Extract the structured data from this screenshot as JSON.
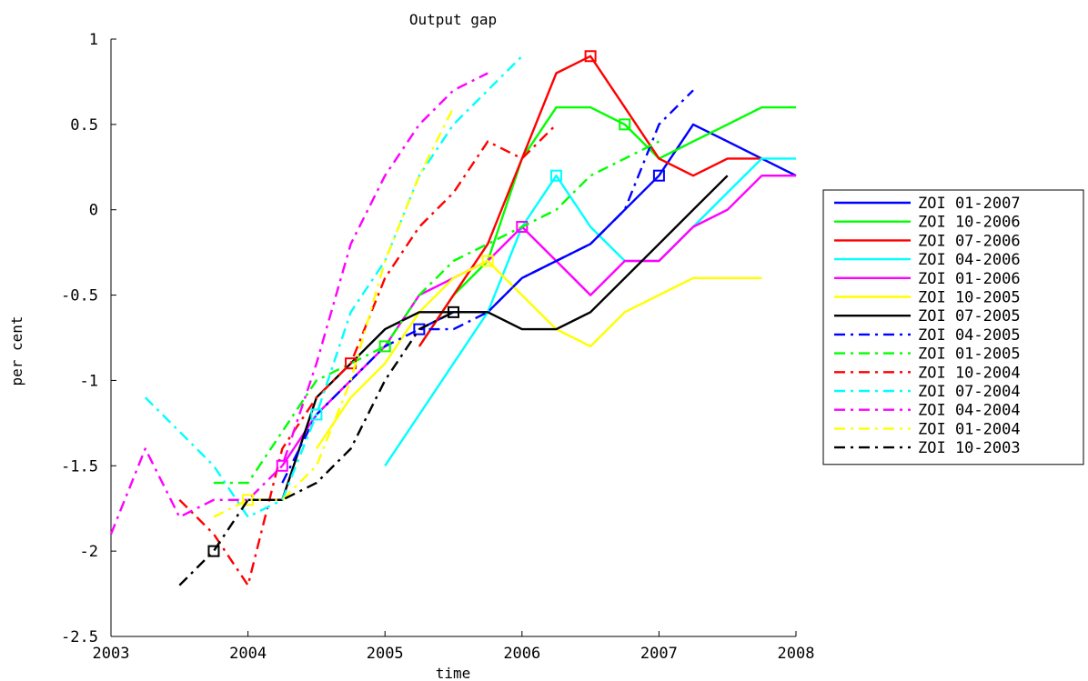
{
  "chart_data": {
    "type": "line",
    "title": "Output gap",
    "xlabel": "time",
    "ylabel": "per cent",
    "xlim": [
      2003,
      2008
    ],
    "ylim": [
      -2.5,
      1
    ],
    "xticks": [
      2003,
      2004,
      2005,
      2006,
      2007,
      2008
    ],
    "xtick_labels": [
      "2003",
      "2004",
      "2005",
      "2006",
      "2007",
      "2008"
    ],
    "yticks": [
      -2.5,
      -2,
      -1.5,
      -1,
      -0.5,
      0,
      0.5,
      1
    ],
    "ytick_labels": [
      "-2.5",
      "-2",
      "-1.5",
      "-1",
      "-0.5",
      "0",
      "0.5",
      "1"
    ],
    "grid": false,
    "legend_position": "right",
    "series": [
      {
        "name": "ZOI 01-2007",
        "color": "#0000ff",
        "dash": "solid",
        "x": [
          2005.25,
          2005.5,
          2005.75,
          2006.0,
          2006.25,
          2006.5,
          2006.75,
          2007.0,
          2007.25,
          2007.5,
          2007.75,
          2008.0
        ],
        "y": [
          -0.7,
          -0.6,
          -0.6,
          -0.4,
          -0.3,
          -0.2,
          0.0,
          0.2,
          0.5,
          0.4,
          0.3,
          0.2
        ],
        "marker": [
          2007.0,
          0.2
        ]
      },
      {
        "name": "ZOI 10-2006",
        "color": "#00ff00",
        "dash": "solid",
        "x": [
          2005.25,
          2005.5,
          2005.75,
          2006.0,
          2006.25,
          2006.5,
          2006.75,
          2007.0,
          2007.25,
          2007.5,
          2007.75,
          2008.0
        ],
        "y": [
          -0.8,
          -0.5,
          -0.3,
          0.3,
          0.6,
          0.6,
          0.5,
          0.3,
          0.4,
          0.5,
          0.6,
          0.6
        ],
        "marker": [
          2006.75,
          0.5
        ]
      },
      {
        "name": "ZOI 07-2006",
        "color": "#ff0000",
        "dash": "solid",
        "x": [
          2005.25,
          2005.5,
          2005.75,
          2006.0,
          2006.25,
          2006.5,
          2006.75,
          2007.0,
          2007.25,
          2007.5,
          2007.75
        ],
        "y": [
          -0.8,
          -0.5,
          -0.2,
          0.3,
          0.8,
          0.9,
          0.6,
          0.3,
          0.2,
          0.3,
          0.3
        ],
        "marker": [
          2006.5,
          0.9
        ]
      },
      {
        "name": "ZOI 04-2006",
        "color": "#00ffff",
        "dash": "solid",
        "x": [
          2005.0,
          2005.25,
          2005.5,
          2005.75,
          2006.0,
          2006.25,
          2006.5,
          2006.75,
          2007.0,
          2007.25,
          2007.5,
          2007.75,
          2008.0
        ],
        "y": [
          -1.5,
          -1.2,
          -0.9,
          -0.6,
          -0.1,
          0.2,
          -0.1,
          -0.3,
          -0.3,
          -0.1,
          0.1,
          0.3,
          0.3
        ],
        "marker": [
          2006.25,
          0.2
        ]
      },
      {
        "name": "ZOI 01-2006",
        "color": "#ff00ff",
        "dash": "solid",
        "x": [
          2004.25,
          2004.5,
          2004.75,
          2005.0,
          2005.25,
          2005.5,
          2005.75,
          2006.0,
          2006.25,
          2006.5,
          2006.75,
          2007.0,
          2007.25,
          2007.5,
          2007.75,
          2008.0
        ],
        "y": [
          -1.5,
          -1.2,
          -1.0,
          -0.8,
          -0.5,
          -0.4,
          -0.3,
          -0.1,
          -0.3,
          -0.5,
          -0.3,
          -0.3,
          -0.1,
          0.0,
          0.2,
          0.2
        ],
        "marker": [
          2006.0,
          -0.1
        ]
      },
      {
        "name": "ZOI 10-2005",
        "color": "#ffff00",
        "dash": "solid",
        "x": [
          2004.5,
          2004.75,
          2005.0,
          2005.25,
          2005.5,
          2005.75,
          2006.0,
          2006.25,
          2006.5,
          2006.75,
          2007.0,
          2007.25,
          2007.5,
          2007.75
        ],
        "y": [
          -1.4,
          -1.1,
          -0.9,
          -0.6,
          -0.4,
          -0.3,
          -0.5,
          -0.7,
          -0.8,
          -0.6,
          -0.5,
          -0.4,
          -0.4,
          -0.4
        ],
        "marker": [
          2005.75,
          -0.3
        ]
      },
      {
        "name": "ZOI 07-2005",
        "color": "#000000",
        "dash": "solid",
        "x": [
          2004.0,
          2004.25,
          2004.5,
          2004.75,
          2005.0,
          2005.25,
          2005.5,
          2005.75,
          2006.0,
          2006.25,
          2006.5,
          2006.75,
          2007.0,
          2007.25,
          2007.5
        ],
        "y": [
          -1.7,
          -1.7,
          -1.1,
          -0.9,
          -0.7,
          -0.6,
          -0.6,
          -0.6,
          -0.7,
          -0.7,
          -0.6,
          -0.4,
          -0.2,
          0.0,
          0.2
        ],
        "marker": [
          2005.5,
          -0.6
        ]
      },
      {
        "name": "ZOI 04-2005",
        "color": "#0000ff",
        "dash": "dashdot",
        "x": [
          2004.25,
          2004.5,
          2004.75,
          2005.0,
          2005.25,
          2005.5,
          2005.75,
          2006.0,
          2006.25,
          2006.5,
          2006.75,
          2007.0,
          2007.25
        ],
        "y": [
          -1.6,
          -1.2,
          -1.0,
          -0.8,
          -0.7,
          -0.7,
          -0.6,
          -0.4,
          -0.3,
          -0.2,
          0.0,
          0.5,
          0.7
        ],
        "marker": [
          2005.25,
          -0.7
        ]
      },
      {
        "name": "ZOI 01-2005",
        "color": "#00ff00",
        "dash": "dashdot",
        "x": [
          2003.75,
          2004.0,
          2004.25,
          2004.5,
          2004.75,
          2005.0,
          2005.25,
          2005.5,
          2005.75,
          2006.0,
          2006.25,
          2006.5,
          2006.75,
          2007.0
        ],
        "y": [
          -1.6,
          -1.6,
          -1.3,
          -1.0,
          -0.9,
          -0.8,
          -0.5,
          -0.3,
          -0.2,
          -0.1,
          0.0,
          0.2,
          0.3,
          0.4
        ],
        "marker": [
          2005.0,
          -0.8
        ]
      },
      {
        "name": "ZOI 10-2004",
        "color": "#ff0000",
        "dash": "dashdot",
        "x": [
          2003.5,
          2003.75,
          2004.0,
          2004.25,
          2004.5,
          2004.75,
          2005.0,
          2005.25,
          2005.5,
          2005.75,
          2006.0,
          2006.25
        ],
        "y": [
          -1.7,
          -1.9,
          -2.2,
          -1.4,
          -1.1,
          -0.9,
          -0.4,
          -0.1,
          0.1,
          0.4,
          0.3,
          0.5
        ],
        "marker": [
          2004.75,
          -0.9
        ]
      },
      {
        "name": "ZOI 07-2004",
        "color": "#00ffff",
        "dash": "dashdot",
        "x": [
          2003.25,
          2003.5,
          2003.75,
          2004.0,
          2004.25,
          2004.5,
          2004.75,
          2005.0,
          2005.25,
          2005.5,
          2005.75,
          2006.0
        ],
        "y": [
          -1.1,
          -1.3,
          -1.5,
          -1.8,
          -1.7,
          -1.2,
          -0.6,
          -0.3,
          0.2,
          0.5,
          0.7,
          0.9
        ],
        "marker": [
          2004.5,
          -1.2
        ]
      },
      {
        "name": "ZOI 04-2004",
        "color": "#ff00ff",
        "dash": "dashdot",
        "x": [
          2003.0,
          2003.25,
          2003.5,
          2003.75,
          2004.0,
          2004.25,
          2004.5,
          2004.75,
          2005.0,
          2005.25,
          2005.5,
          2005.75
        ],
        "y": [
          -1.9,
          -1.4,
          -1.8,
          -1.7,
          -1.7,
          -1.5,
          -0.9,
          -0.2,
          0.2,
          0.5,
          0.7,
          0.8
        ],
        "marker": [
          2004.25,
          -1.5
        ]
      },
      {
        "name": "ZOI 01-2004",
        "color": "#ffff00",
        "dash": "dashdot",
        "x": [
          2003.75,
          2004.0,
          2004.25,
          2004.5,
          2004.75,
          2005.0,
          2005.25,
          2005.5
        ],
        "y": [
          -1.8,
          -1.7,
          -1.7,
          -1.5,
          -1.0,
          -0.3,
          0.2,
          0.6
        ],
        "marker": [
          2004.0,
          -1.7
        ]
      },
      {
        "name": "ZOI 10-2003",
        "color": "#000000",
        "dash": "dashdot",
        "x": [
          2003.5,
          2003.75,
          2004.0,
          2004.25,
          2004.5,
          2004.75,
          2005.0,
          2005.25,
          2005.5
        ],
        "y": [
          -2.2,
          -2.0,
          -1.7,
          -1.7,
          -1.6,
          -1.4,
          -1.0,
          -0.7,
          -0.6
        ],
        "marker": [
          2003.75,
          -2.0
        ]
      }
    ]
  }
}
